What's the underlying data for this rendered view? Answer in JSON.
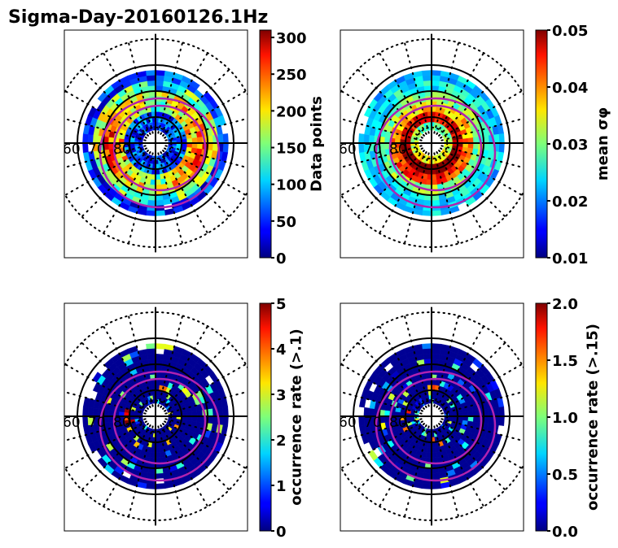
{
  "chart_data": {
    "type": "heatmap",
    "title": "Sigma-Day-20160126.1Hz",
    "projection": "polar (magnetic latitude / local time)",
    "lat_labels": [
      "60",
      "70",
      "80"
    ],
    "lat_circles_solid": [
      60,
      70,
      80
    ],
    "colormap": "jet",
    "panels": [
      {
        "id": "data-points",
        "colorbar_label": "Data points",
        "clim": [
          0,
          310
        ],
        "colorbar_ticks": [
          "0",
          "50",
          "100",
          "150",
          "200",
          "250",
          "300"
        ],
        "tick_values": [
          0,
          50,
          100,
          150,
          200,
          250,
          300
        ],
        "description": "Coverage ring between ~60 and ~85 MLAT; mostly blue/cyan 50-200, higher (yellow-orange ~200-270) on dawn/dusk flanks near 70-75 MLAT",
        "rings": [
          {
            "lat": [
              62,
              66
            ],
            "level": 0.18
          },
          {
            "lat": [
              66,
              70
            ],
            "level": 0.35
          },
          {
            "lat": [
              70,
              74
            ],
            "level": 0.55
          },
          {
            "lat": [
              74,
              78
            ],
            "level": 0.45
          },
          {
            "lat": [
              78,
              82
            ],
            "level": 0.2
          },
          {
            "lat": [
              82,
              85
            ],
            "level": 0.15
          }
        ]
      },
      {
        "id": "mean-sigma-phi",
        "colorbar_label": "mean σφ",
        "clim": [
          0.01,
          0.05
        ],
        "colorbar_ticks": [
          "0.01",
          "0.02",
          "0.03",
          "0.04",
          "0.05"
        ],
        "tick_values": [
          0.01,
          0.02,
          0.03,
          0.04,
          0.05
        ],
        "description": "Low (0.02-0.03) at 60-70 MLAT; high (0.045-0.05, dark red) ring around 75-82 MLAT, especially on dayside/dusk",
        "rings": [
          {
            "lat": [
              62,
              66
            ],
            "level": 0.33
          },
          {
            "lat": [
              66,
              70
            ],
            "level": 0.38
          },
          {
            "lat": [
              70,
              74
            ],
            "level": 0.5
          },
          {
            "lat": [
              74,
              78
            ],
            "level": 0.75
          },
          {
            "lat": [
              78,
              82
            ],
            "level": 0.95
          },
          {
            "lat": [
              82,
              85
            ],
            "level": 0.55
          }
        ]
      },
      {
        "id": "occurrence-rate-0.1",
        "colorbar_label": "occurrence rate (>.1)",
        "clim": [
          0,
          5
        ],
        "colorbar_ticks": [
          "0",
          "1",
          "2",
          "3",
          "4",
          "5"
        ],
        "tick_values": [
          0,
          1,
          2,
          3,
          4,
          5
        ],
        "description": "Mostly 0 (dark blue) everywhere; sparse high values (3-5) along ~78-82 MLAT arc",
        "rings": [
          {
            "lat": [
              62,
              66
            ],
            "level": 0.02
          },
          {
            "lat": [
              66,
              70
            ],
            "level": 0.03
          },
          {
            "lat": [
              70,
              74
            ],
            "level": 0.05
          },
          {
            "lat": [
              74,
              78
            ],
            "level": 0.1
          },
          {
            "lat": [
              78,
              82
            ],
            "level": 0.45
          },
          {
            "lat": [
              82,
              85
            ],
            "level": 0.05
          }
        ]
      },
      {
        "id": "occurrence-rate-0.15",
        "colorbar_label": "occurrence rate (>.15)",
        "clim": [
          0,
          2
        ],
        "colorbar_ticks": [
          "0.0",
          "0.5",
          "1.0",
          "1.5",
          "2.0"
        ],
        "tick_values": [
          0,
          0.5,
          1.0,
          1.5,
          2.0
        ],
        "description": "Mostly 0 (dark blue); isolated patches of 1-2 near 78-82 MLAT",
        "rings": [
          {
            "lat": [
              62,
              66
            ],
            "level": 0.02
          },
          {
            "lat": [
              66,
              70
            ],
            "level": 0.02
          },
          {
            "lat": [
              70,
              74
            ],
            "level": 0.04
          },
          {
            "lat": [
              74,
              78
            ],
            "level": 0.08
          },
          {
            "lat": [
              78,
              82
            ],
            "level": 0.3
          },
          {
            "lat": [
              82,
              85
            ],
            "level": 0.03
          }
        ]
      }
    ],
    "overlays": {
      "auroral_oval_color": "#b022b0",
      "grid_color": "#000000"
    }
  }
}
